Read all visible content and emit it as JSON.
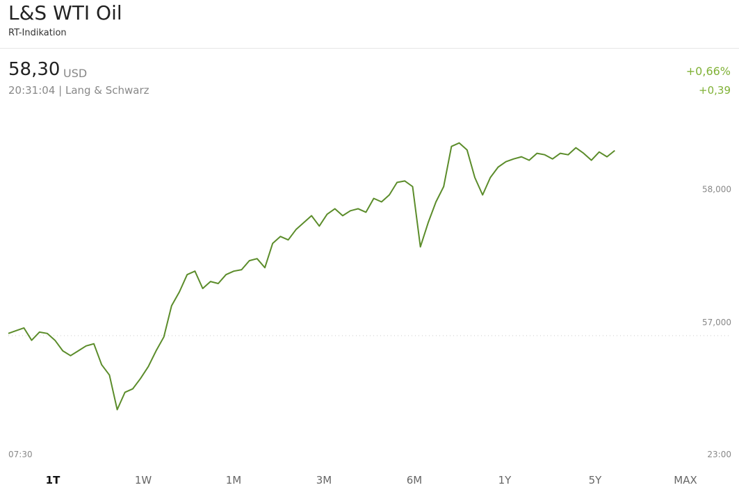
{
  "header": {
    "title": "L&S WTI Oil",
    "subtitle": "RT-Indikation",
    "price": "58,30",
    "currency": "USD",
    "time_source": "20:31:04 | Lang & Schwarz",
    "change_pct": "+0,66%",
    "change_abs": "+0,39"
  },
  "range_buttons": {
    "items": [
      "1T",
      "1W",
      "1M",
      "3M",
      "6M",
      "1Y",
      "5Y",
      "MAX"
    ],
    "active": 0
  },
  "chart_data": {
    "type": "line",
    "color": "#5b8c2a",
    "x": [
      "07:30",
      "07:40",
      "07:50",
      "08:00",
      "08:10",
      "08:20",
      "08:30",
      "08:40",
      "08:50",
      "09:00",
      "09:10",
      "09:20",
      "09:30",
      "09:40",
      "09:50",
      "10:00",
      "10:10",
      "10:20",
      "10:30",
      "10:40",
      "10:50",
      "11:00",
      "11:10",
      "11:20",
      "11:30",
      "11:40",
      "11:50",
      "12:00",
      "12:10",
      "12:20",
      "12:30",
      "12:40",
      "12:50",
      "13:00",
      "13:10",
      "13:20",
      "13:30",
      "13:40",
      "13:50",
      "14:00",
      "14:10",
      "14:20",
      "14:30",
      "14:40",
      "14:50",
      "15:00",
      "15:10",
      "15:20",
      "15:30",
      "15:40",
      "15:50",
      "16:00",
      "16:10",
      "16:20",
      "16:30",
      "16:40",
      "16:50",
      "17:00",
      "17:10",
      "17:20",
      "17:30",
      "17:40",
      "17:50",
      "18:00",
      "18:10",
      "18:20",
      "18:30",
      "18:40",
      "18:50",
      "19:00",
      "19:10",
      "19:20",
      "19:30",
      "19:40",
      "19:50",
      "20:00",
      "20:10",
      "20:20",
      "20:30"
    ],
    "values": [
      56.917,
      56.938,
      56.958,
      56.865,
      56.927,
      56.917,
      56.865,
      56.786,
      56.75,
      56.786,
      56.823,
      56.839,
      56.682,
      56.604,
      56.344,
      56.474,
      56.5,
      56.578,
      56.667,
      56.786,
      56.891,
      57.125,
      57.229,
      57.359,
      57.385,
      57.255,
      57.307,
      57.292,
      57.359,
      57.385,
      57.396,
      57.464,
      57.479,
      57.411,
      57.594,
      57.646,
      57.62,
      57.698,
      57.75,
      57.802,
      57.724,
      57.813,
      57.854,
      57.802,
      57.839,
      57.854,
      57.828,
      57.932,
      57.906,
      57.958,
      58.052,
      58.063,
      58.021,
      57.568,
      57.75,
      57.906,
      58.021,
      58.323,
      58.349,
      58.297,
      58.089,
      57.958,
      58.089,
      58.167,
      58.208,
      58.229,
      58.245,
      58.219,
      58.271,
      58.26,
      58.229,
      58.271,
      58.26,
      58.313,
      58.271,
      58.219,
      58.281,
      58.245,
      58.292
    ],
    "reference_line": 56.9,
    "xlim": [
      "07:30",
      "23:00"
    ],
    "xticks": [
      "07:30",
      "23:00"
    ],
    "ylim": [
      56.08,
      58.64
    ],
    "yticks": [
      {
        "value": 57,
        "label": "57,000"
      },
      {
        "value": 58,
        "label": "58,000"
      }
    ],
    "grid": false
  }
}
